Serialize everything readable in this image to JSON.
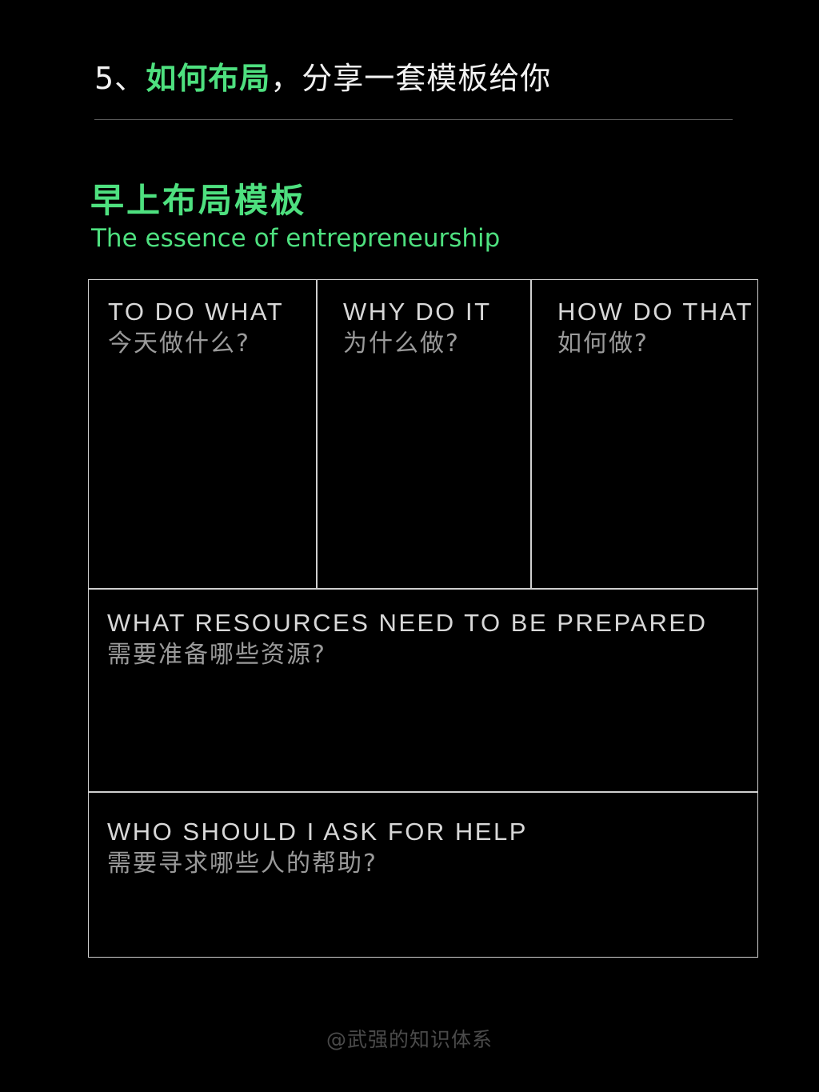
{
  "header": {
    "number": "5、",
    "accent": "如何布局",
    "rest": "，分享一套模板给你"
  },
  "section": {
    "title": "早上布局模板",
    "subtitle": "The essence of entrepreneurship"
  },
  "template": {
    "cells": [
      {
        "en": "TO DO WHAT",
        "zh": "今天做什么?"
      },
      {
        "en": "WHY DO IT",
        "zh": "为什么做?"
      },
      {
        "en": "HOW DO THAT",
        "zh": "如何做?"
      },
      {
        "en": "WHAT RESOURCES NEED TO BE PREPARED",
        "zh": "需要准备哪些资源?"
      },
      {
        "en": "WHO SHOULD I ASK FOR  HELP",
        "zh": "需要寻求哪些人的帮助?"
      }
    ]
  },
  "watermark": "@武强的知识体系",
  "colors": {
    "accent": "#4ee07f",
    "background": "#000000",
    "border": "#cfcfcf"
  }
}
